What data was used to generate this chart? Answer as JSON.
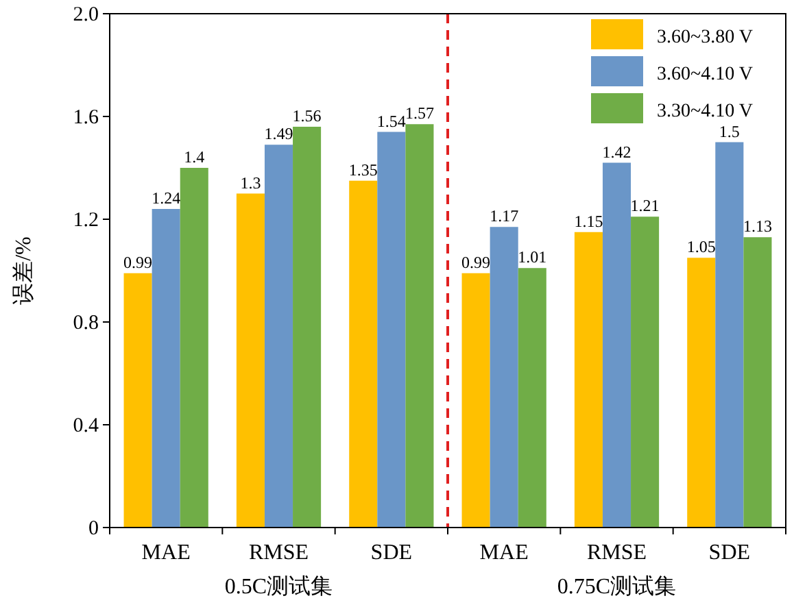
{
  "chart_data": {
    "type": "bar",
    "ylabel": "误差/%",
    "categories": [
      "MAE",
      "RMSE",
      "SDE",
      "MAE",
      "RMSE",
      "SDE"
    ],
    "series": [
      {
        "name": "3.60~3.80 V",
        "color": "#ffc000",
        "values": [
          0.99,
          1.3,
          1.35,
          0.99,
          1.15,
          1.05
        ]
      },
      {
        "name": "3.60~4.10 V",
        "color": "#6a96c8",
        "values": [
          1.24,
          1.49,
          1.54,
          1.17,
          1.42,
          1.5
        ]
      },
      {
        "name": "3.30~4.10 V",
        "color": "#70ad47",
        "values": [
          1.4,
          1.56,
          1.57,
          1.01,
          1.21,
          1.13
        ]
      }
    ],
    "ylim": [
      0,
      2
    ],
    "yticks": [
      0,
      0.4,
      0.8,
      1.2,
      1.6,
      {
        "value": 2,
        "label": "2.0"
      }
    ],
    "annotations": [
      "0.5C测试集",
      "0.75C测试集"
    ],
    "data_labels": true,
    "legend": "top right",
    "grid": false
  }
}
